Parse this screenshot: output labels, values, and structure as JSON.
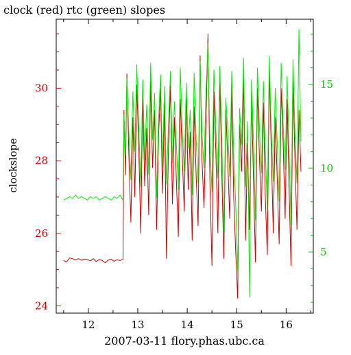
{
  "chart_data": {
    "type": "line",
    "title": "clock (red) rtc (green) slopes",
    "xlabel": "2007-03-11 flory.phas.ubc.ca",
    "ylabel_left": "clockslope",
    "ylabel_right": "",
    "colors": {
      "left_axis": "#cc0000",
      "right_axis": "#00cc00",
      "series_red": "#cc0000",
      "series_green": "#00ee00",
      "axes": "#000000"
    },
    "grid": false,
    "x_range": [
      11.35,
      16.55
    ],
    "y_left_range": [
      23.8,
      31.9
    ],
    "y_right_range": [
      1.35,
      18.9
    ],
    "x_ticks": [
      12,
      13,
      14,
      15,
      16
    ],
    "x_tick_labels": [
      "12",
      "13",
      "14",
      "15",
      "16"
    ],
    "y_left_ticks": [
      24,
      26,
      28,
      30
    ],
    "y_left_tick_labels": [
      "24",
      "26",
      "28",
      "30"
    ],
    "y_right_ticks": [
      5,
      10,
      15
    ],
    "y_right_tick_labels": [
      "5",
      "10",
      "15"
    ],
    "series": [
      {
        "name": "clock",
        "axis": "left",
        "color": "#cc0000",
        "x": [
          11.5,
          11.56,
          11.62,
          11.68,
          11.74,
          11.8,
          11.86,
          11.92,
          11.98,
          12.04,
          12.1,
          12.16,
          12.22,
          12.28,
          12.34,
          12.4,
          12.46,
          12.52,
          12.58,
          12.64,
          12.7,
          12.72,
          12.75,
          12.78,
          12.82,
          12.86,
          12.9,
          12.94,
          12.98,
          13.02,
          13.06,
          13.1,
          13.14,
          13.18,
          13.22,
          13.26,
          13.3,
          13.34,
          13.38,
          13.42,
          13.46,
          13.5,
          13.54,
          13.58,
          13.62,
          13.66,
          13.7,
          13.74,
          13.78,
          13.82,
          13.86,
          13.9,
          13.94,
          13.98,
          14.02,
          14.06,
          14.1,
          14.14,
          14.18,
          14.22,
          14.26,
          14.3,
          14.34,
          14.38,
          14.42,
          14.46,
          14.5,
          14.54,
          14.58,
          14.62,
          14.66,
          14.7,
          14.74,
          14.78,
          14.82,
          14.86,
          14.9,
          14.94,
          14.98,
          15.02,
          15.06,
          15.1,
          15.14,
          15.18,
          15.22,
          15.26,
          15.3,
          15.34,
          15.38,
          15.42,
          15.46,
          15.5,
          15.54,
          15.58,
          15.62,
          15.66,
          15.7,
          15.74,
          15.78,
          15.82,
          15.86,
          15.9,
          15.94,
          15.98,
          16.02,
          16.06,
          16.1,
          16.14,
          16.18,
          16.22,
          16.26,
          16.3
        ],
        "values": [
          25.25,
          25.21,
          25.32,
          25.3,
          25.27,
          25.3,
          25.26,
          25.29,
          25.28,
          25.24,
          25.3,
          25.22,
          25.28,
          25.25,
          25.19,
          25.26,
          25.29,
          25.23,
          25.27,
          25.25,
          25.28,
          29.4,
          27.6,
          30.4,
          28.1,
          26.3,
          29.2,
          27.0,
          30.1,
          28.4,
          26.0,
          29.8,
          27.3,
          28.9,
          26.5,
          30.2,
          27.8,
          29.4,
          26.1,
          28.7,
          30.0,
          27.1,
          29.6,
          25.3,
          28.3,
          30.1,
          26.8,
          29.2,
          27.5,
          25.9,
          29.7,
          28.1,
          26.6,
          30.0,
          27.2,
          28.8,
          25.8,
          29.5,
          27.6,
          26.2,
          30.9,
          28.0,
          26.7,
          29.1,
          31.5,
          27.3,
          25.1,
          29.9,
          28.2,
          26.0,
          30.3,
          27.6,
          25.3,
          29.4,
          28.0,
          26.4,
          30.1,
          27.0,
          25.5,
          24.2,
          29.0,
          27.7,
          30.3,
          25.8,
          28.5,
          26.1,
          29.8,
          27.5,
          25.2,
          30.0,
          28.1,
          26.6,
          29.6,
          27.0,
          25.4,
          30.5,
          28.3,
          26.0,
          29.2,
          27.5,
          25.7,
          30.0,
          28.5,
          26.4,
          29.7,
          27.2,
          25.1,
          30.2,
          28.0,
          26.1,
          29.4,
          27.7
        ]
      },
      {
        "name": "rtc",
        "axis": "right",
        "color": "#00ee00",
        "x": [
          11.5,
          11.56,
          11.62,
          11.68,
          11.74,
          11.8,
          11.86,
          11.92,
          11.98,
          12.04,
          12.1,
          12.16,
          12.22,
          12.28,
          12.34,
          12.4,
          12.46,
          12.52,
          12.58,
          12.64,
          12.7,
          12.72,
          12.75,
          12.78,
          12.82,
          12.86,
          12.9,
          12.94,
          12.98,
          13.02,
          13.06,
          13.1,
          13.14,
          13.18,
          13.22,
          13.26,
          13.3,
          13.34,
          13.38,
          13.42,
          13.46,
          13.5,
          13.54,
          13.58,
          13.62,
          13.66,
          13.7,
          13.74,
          13.78,
          13.82,
          13.86,
          13.9,
          13.94,
          13.98,
          14.02,
          14.06,
          14.1,
          14.14,
          14.18,
          14.22,
          14.26,
          14.3,
          14.34,
          14.38,
          14.42,
          14.46,
          14.5,
          14.54,
          14.58,
          14.62,
          14.66,
          14.7,
          14.74,
          14.78,
          14.82,
          14.86,
          14.9,
          14.94,
          14.98,
          15.02,
          15.06,
          15.1,
          15.14,
          15.18,
          15.22,
          15.26,
          15.3,
          15.34,
          15.38,
          15.42,
          15.46,
          15.5,
          15.54,
          15.58,
          15.62,
          15.66,
          15.7,
          15.74,
          15.78,
          15.82,
          15.86,
          15.9,
          15.94,
          15.98,
          16.02,
          16.06,
          16.1,
          16.14,
          16.18,
          16.22,
          16.26,
          16.3
        ],
        "values": [
          8.1,
          8.2,
          8.3,
          8.2,
          8.4,
          8.2,
          8.3,
          8.2,
          8.1,
          8.3,
          8.2,
          8.3,
          8.1,
          8.2,
          8.3,
          8.2,
          8.1,
          8.3,
          8.2,
          8.4,
          8.1,
          13.2,
          10.8,
          15.4,
          12.1,
          9.3,
          14.6,
          11.0,
          16.2,
          12.5,
          8.9,
          15.3,
          10.5,
          13.8,
          9.6,
          16.3,
          11.7,
          14.5,
          8.2,
          12.9,
          15.6,
          10.1,
          14.9,
          9.0,
          12.6,
          15.8,
          10.3,
          14.0,
          11.5,
          8.7,
          16.0,
          12.2,
          9.8,
          15.1,
          11.2,
          13.5,
          8.4,
          15.7,
          11.8,
          9.1,
          16.4,
          12.0,
          10.0,
          14.6,
          17.5,
          11.3,
          8.6,
          15.9,
          12.4,
          9.4,
          16.1,
          11.6,
          6.2,
          14.2,
          12.3,
          9.5,
          15.8,
          10.9,
          7.9,
          3.8,
          13.6,
          11.4,
          16.6,
          8.9,
          12.8,
          2.3,
          15.3,
          11.7,
          6.9,
          16.0,
          12.5,
          9.7,
          15.2,
          11.1,
          7.5,
          16.7,
          12.2,
          9.2,
          14.8,
          11.5,
          8.0,
          16.3,
          12.7,
          9.9,
          15.5,
          11.2,
          6.6,
          16.5,
          12.0,
          9.1,
          18.3,
          11.6
        ]
      }
    ]
  }
}
